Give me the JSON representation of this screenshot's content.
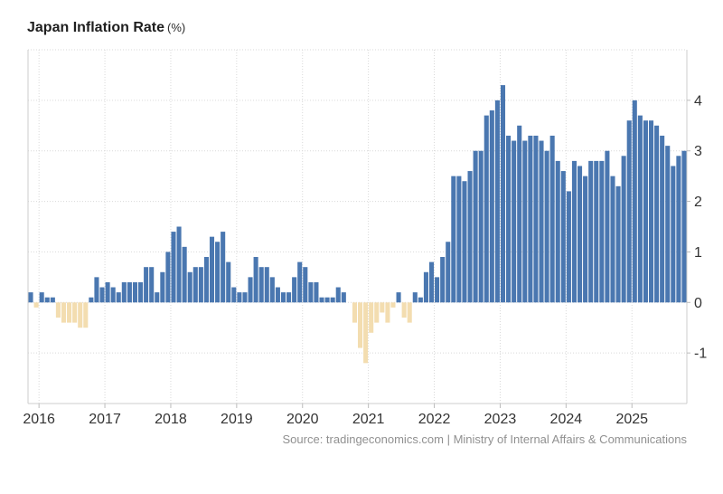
{
  "title": {
    "main": "Japan Inflation Rate",
    "unit": "(%)"
  },
  "source": {
    "text": "Source: tradingeconomics.com | Ministry of Internal Affairs & Communications"
  },
  "colors": {
    "positive_bar": "#4a77b0",
    "negative_bar": "#f3ddb0",
    "gridline": "#d9d9d9",
    "axis_text": "#333333",
    "source_text": "#909090"
  },
  "chart_data": {
    "type": "bar",
    "title": "Japan Inflation Rate (%)",
    "unit": "%",
    "xlabel": "",
    "ylabel": "",
    "frequency": "monthly",
    "x_start": "2015-11",
    "x_end": "2025-10",
    "ylim": [
      -2,
      5
    ],
    "grid": true,
    "legend": false,
    "positive_color": "#4a77b0",
    "negative_color": "#f3ddb0",
    "year_ticks": [
      "2016",
      "2017",
      "2018",
      "2019",
      "2020",
      "2021",
      "2022",
      "2023",
      "2024",
      "2025"
    ],
    "y_ticks": [
      "4",
      "3",
      "2",
      "1",
      "0",
      "-1"
    ],
    "monthly_values": [
      0.2,
      -0.1,
      0.2,
      0.1,
      0.1,
      -0.3,
      -0.4,
      -0.4,
      -0.4,
      -0.5,
      -0.5,
      0.1,
      0.5,
      0.3,
      0.4,
      0.3,
      0.2,
      0.4,
      0.4,
      0.4,
      0.4,
      0.7,
      0.7,
      0.2,
      0.6,
      1.0,
      1.4,
      1.5,
      1.1,
      0.6,
      0.7,
      0.7,
      0.9,
      1.3,
      1.2,
      1.4,
      0.8,
      0.3,
      0.2,
      0.2,
      0.5,
      0.9,
      0.7,
      0.7,
      0.5,
      0.3,
      0.2,
      0.2,
      0.5,
      0.8,
      0.7,
      0.4,
      0.4,
      0.1,
      0.1,
      0.1,
      0.3,
      0.2,
      0.0,
      -0.4,
      -0.9,
      -1.2,
      -0.6,
      -0.4,
      -0.2,
      -0.4,
      -0.1,
      0.2,
      -0.3,
      -0.4,
      0.2,
      0.1,
      0.6,
      0.8,
      0.5,
      0.9,
      1.2,
      2.5,
      2.5,
      2.4,
      2.6,
      3.0,
      3.0,
      3.7,
      3.8,
      4.0,
      4.3,
      3.3,
      3.2,
      3.5,
      3.2,
      3.3,
      3.3,
      3.2,
      3.0,
      3.3,
      2.8,
      2.6,
      2.2,
      2.8,
      2.7,
      2.5,
      2.8,
      2.8,
      2.8,
      3.0,
      2.5,
      2.3,
      2.9,
      3.6,
      4.0,
      3.7,
      3.6,
      3.6,
      3.5,
      3.3,
      3.1,
      2.7,
      2.9,
      3.0
    ]
  }
}
